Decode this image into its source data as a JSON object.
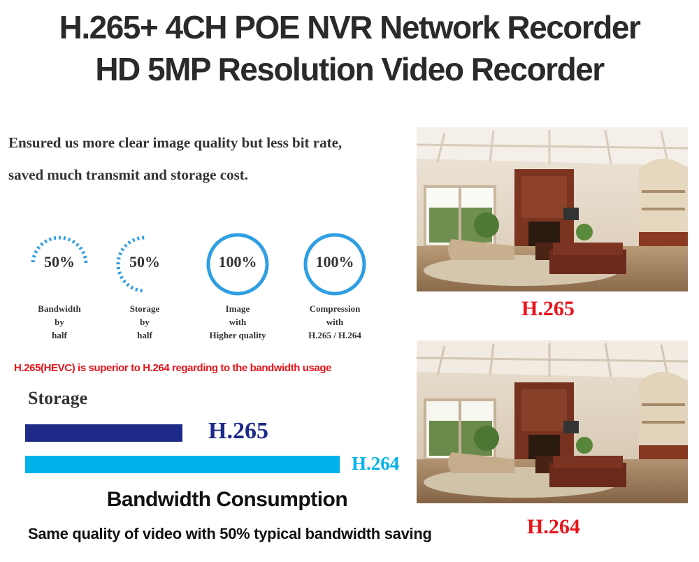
{
  "title_line1": "H.265+ 4CH POE NVR Network Recorder",
  "title_line2": "HD 5MP Resolution Video Recorder",
  "intro_line1": "Ensured us more clear image quality but less bit rate,",
  "intro_line2": "saved much transmit and storage cost.",
  "stats": [
    {
      "value": "50%",
      "caption": [
        "Bandwidth",
        "by",
        "half"
      ],
      "style": "dashed-half"
    },
    {
      "value": "50%",
      "caption": [
        "Storage",
        "by",
        "half"
      ],
      "style": "dashed-half"
    },
    {
      "value": "100%",
      "caption": [
        "Image",
        "with",
        "Higher quality"
      ],
      "style": "full"
    },
    {
      "value": "100%",
      "caption": [
        "Compression",
        "with",
        "H.265 / H.264"
      ],
      "style": "full"
    }
  ],
  "note": "H.265(HEVC) is superior to H.264 regarding to the bandwidth usage",
  "storage_label": "Storage",
  "bars": [
    {
      "label": "H.265",
      "relative": 0.5,
      "color": "#1e2a88"
    },
    {
      "label": "H.264",
      "relative": 1.0,
      "color": "#00b2ea"
    }
  ],
  "bandwidth_title": "Bandwidth Consumption",
  "bandwidth_note": "Same quality of video with 50% typical bandwidth saving",
  "photos": [
    {
      "label": "H.265"
    },
    {
      "label": "H.264"
    }
  ],
  "colors": {
    "ring": "#2e9fe3",
    "red": "#e8141b",
    "h265": "#1e2a88",
    "h264": "#00b2ea"
  }
}
